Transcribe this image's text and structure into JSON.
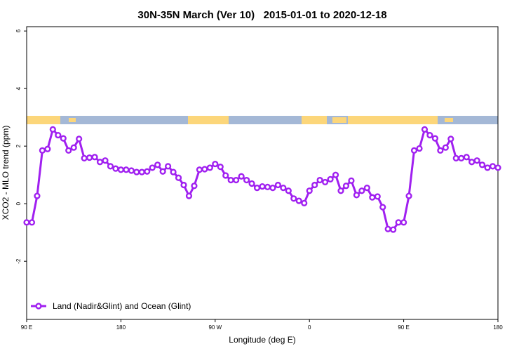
{
  "chart_data": {
    "type": "line",
    "title": "30N-35N March (Ver 10)   2015-01-01 to 2020-12-18",
    "x_label": "Longitude (deg E)",
    "y_label": "XCO2 - MLO trend (ppm)",
    "x": [
      90,
      95,
      100,
      105,
      110,
      115,
      120,
      125,
      130,
      135,
      140,
      145,
      150,
      155,
      160,
      165,
      170,
      175,
      180,
      185,
      190,
      195,
      200,
      205,
      210,
      215,
      220,
      225,
      230,
      235,
      240,
      245,
      250,
      255,
      260,
      265,
      270,
      275,
      280,
      285,
      290,
      295,
      300,
      305,
      310,
      315,
      320,
      325,
      330,
      335,
      340,
      345,
      350,
      355,
      360,
      365,
      370,
      375,
      380,
      385,
      390,
      395,
      400,
      405,
      410,
      415,
      420,
      425,
      430,
      435,
      440,
      445,
      450,
      455,
      460,
      465,
      470,
      475,
      480,
      485,
      490,
      495,
      500,
      505,
      510,
      515,
      520,
      525,
      530,
      535,
      540
    ],
    "series": [
      {
        "name": "Land (Nadir&Glint) and Ocean (Glint)",
        "color": "#a020f0",
        "values": [
          -0.65,
          -0.65,
          0.27,
          1.85,
          1.9,
          2.58,
          2.38,
          2.27,
          1.85,
          1.95,
          2.25,
          1.58,
          1.6,
          1.62,
          1.45,
          1.5,
          1.3,
          1.22,
          1.18,
          1.18,
          1.15,
          1.1,
          1.1,
          1.12,
          1.25,
          1.35,
          1.12,
          1.3,
          1.1,
          0.9,
          0.65,
          0.27,
          0.62,
          1.18,
          1.2,
          1.25,
          1.38,
          1.28,
          0.98,
          0.82,
          0.82,
          0.95,
          0.82,
          0.7,
          0.55,
          0.6,
          0.58,
          0.55,
          0.65,
          0.55,
          0.45,
          0.18,
          0.1,
          0.02,
          0.45,
          0.65,
          0.82,
          0.75,
          0.85,
          1.0,
          0.45,
          0.62,
          0.8,
          0.3,
          0.45,
          0.55,
          0.22,
          0.25,
          -0.12,
          -0.88,
          -0.9,
          -0.65,
          -0.65,
          0.27,
          1.85,
          1.92,
          2.58,
          2.38,
          2.27,
          1.85,
          1.95,
          2.25,
          1.58,
          1.58,
          1.62,
          1.45,
          1.5,
          1.35,
          1.25,
          1.3,
          1.25
        ]
      }
    ],
    "xlim": [
      90,
      540
    ],
    "xticks": [
      {
        "value": 90,
        "label": "90 E"
      },
      180,
      {
        "value": 270,
        "label": "90 W"
      },
      {
        "value": 360,
        "label": "0"
      },
      {
        "value": 450,
        "label": "90 E"
      },
      {
        "value": 540,
        "label": "180"
      }
    ],
    "ylim": [
      -4.02,
      6.15
    ],
    "yticks": [
      -2,
      0,
      2,
      4,
      6
    ],
    "legend": "bottom-left"
  }
}
